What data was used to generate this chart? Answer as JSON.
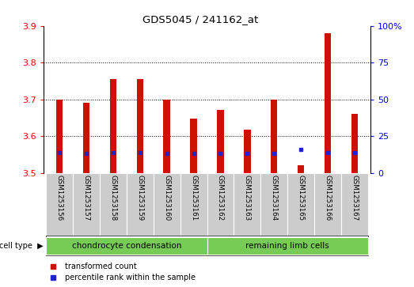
{
  "title": "GDS5045 / 241162_at",
  "samples": [
    "GSM1253156",
    "GSM1253157",
    "GSM1253158",
    "GSM1253159",
    "GSM1253160",
    "GSM1253161",
    "GSM1253162",
    "GSM1253163",
    "GSM1253164",
    "GSM1253165",
    "GSM1253166",
    "GSM1253167"
  ],
  "bar_tops": [
    3.7,
    3.69,
    3.755,
    3.755,
    3.7,
    3.648,
    3.672,
    3.617,
    3.7,
    3.521,
    3.88,
    3.66
  ],
  "blue_pcts": [
    14,
    13,
    14,
    14,
    13,
    13,
    13,
    13,
    13,
    16,
    14,
    14
  ],
  "ylim_left": [
    3.5,
    3.9
  ],
  "ylim_right": [
    0,
    100
  ],
  "yticks_left": [
    3.5,
    3.6,
    3.7,
    3.8,
    3.9
  ],
  "yticks_right": [
    0,
    25,
    50,
    75,
    100
  ],
  "ytick_right_labels": [
    "0",
    "25",
    "50",
    "75",
    "100%"
  ],
  "bar_color": "#cc1100",
  "blue_color": "#2222cc",
  "gray_color": "#cccccc",
  "green_color": "#77cc55",
  "white_color": "#ffffff",
  "cell_type_groups": [
    {
      "label": "chondrocyte condensation",
      "start": 0,
      "end": 6
    },
    {
      "label": "remaining limb cells",
      "start": 6,
      "end": 12
    }
  ],
  "legend_labels": [
    "transformed count",
    "percentile rank within the sample"
  ],
  "legend_colors": [
    "#cc1100",
    "#2222cc"
  ],
  "bar_width": 0.25,
  "baseline": 3.5
}
